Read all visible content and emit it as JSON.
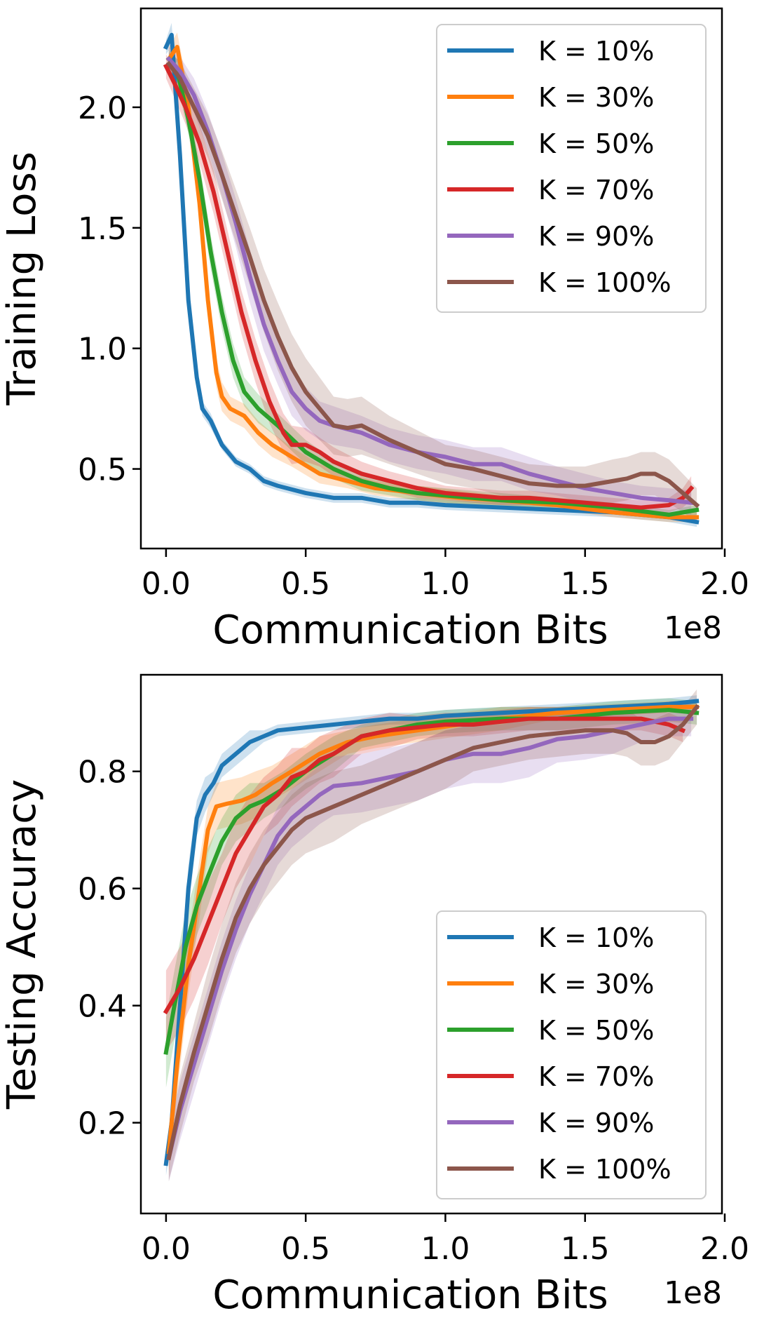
{
  "chart_data": [
    {
      "type": "line",
      "title": "",
      "xlabel": "Communication Bits",
      "ylabel": "Training Loss",
      "x_offset_label": "1e8",
      "xlim": [
        -0.09,
        1.99
      ],
      "ylim": [
        0.17,
        2.41
      ],
      "xticks": [
        0.0,
        0.5,
        1.0,
        1.5,
        2.0
      ],
      "xtick_labels": [
        "0.0",
        "0.5",
        "1.0",
        "1.5",
        "2.0"
      ],
      "yticks": [
        0.5,
        1.0,
        1.5,
        2.0
      ],
      "ytick_labels": [
        "0.5",
        "1.0",
        "1.5",
        "2.0"
      ],
      "grid": false,
      "legend_position": "top-right",
      "series": [
        {
          "name": "K = 10%",
          "color": "#1f77b4",
          "x": [
            0.0,
            0.02,
            0.05,
            0.08,
            0.11,
            0.13,
            0.16,
            0.2,
            0.25,
            0.3,
            0.35,
            0.4,
            0.5,
            0.6,
            0.7,
            0.8,
            0.9,
            1.0,
            1.2,
            1.4,
            1.6,
            1.8,
            1.9
          ],
          "y": [
            2.25,
            2.3,
            1.8,
            1.2,
            0.88,
            0.75,
            0.7,
            0.6,
            0.53,
            0.5,
            0.45,
            0.43,
            0.4,
            0.38,
            0.38,
            0.36,
            0.36,
            0.35,
            0.34,
            0.33,
            0.32,
            0.3,
            0.28
          ],
          "band": [
            0.03,
            0.05,
            0.05,
            0.05,
            0.04,
            0.03,
            0.03,
            0.02,
            0.02,
            0.02,
            0.02,
            0.02,
            0.02,
            0.02,
            0.02,
            0.02,
            0.02,
            0.02,
            0.02,
            0.02,
            0.02,
            0.02,
            0.02
          ]
        },
        {
          "name": "K = 30%",
          "color": "#ff7f0e",
          "x": [
            0.01,
            0.04,
            0.08,
            0.12,
            0.15,
            0.18,
            0.2,
            0.23,
            0.28,
            0.33,
            0.38,
            0.45,
            0.55,
            0.65,
            0.75,
            0.9,
            1.05,
            1.2,
            1.4,
            1.6,
            1.8,
            1.9
          ],
          "y": [
            2.2,
            2.25,
            2.0,
            1.6,
            1.2,
            0.9,
            0.8,
            0.75,
            0.72,
            0.65,
            0.6,
            0.55,
            0.48,
            0.45,
            0.42,
            0.4,
            0.38,
            0.37,
            0.35,
            0.32,
            0.3,
            0.3
          ],
          "band": [
            0.05,
            0.06,
            0.07,
            0.07,
            0.07,
            0.06,
            0.06,
            0.05,
            0.05,
            0.05,
            0.05,
            0.04,
            0.04,
            0.03,
            0.03,
            0.03,
            0.03,
            0.02,
            0.02,
            0.02,
            0.02,
            0.02
          ]
        },
        {
          "name": "K = 50%",
          "color": "#2ca02c",
          "x": [
            0.01,
            0.04,
            0.08,
            0.12,
            0.16,
            0.2,
            0.24,
            0.28,
            0.33,
            0.4,
            0.5,
            0.6,
            0.7,
            0.8,
            0.9,
            1.0,
            1.2,
            1.4,
            1.6,
            1.8,
            1.9
          ],
          "y": [
            2.2,
            2.15,
            1.95,
            1.7,
            1.4,
            1.15,
            0.95,
            0.82,
            0.75,
            0.68,
            0.57,
            0.5,
            0.45,
            0.42,
            0.4,
            0.39,
            0.37,
            0.36,
            0.34,
            0.31,
            0.33
          ],
          "band": [
            0.04,
            0.05,
            0.06,
            0.07,
            0.07,
            0.07,
            0.07,
            0.06,
            0.06,
            0.05,
            0.05,
            0.04,
            0.04,
            0.03,
            0.03,
            0.03,
            0.03,
            0.02,
            0.02,
            0.02,
            0.02
          ]
        },
        {
          "name": "K = 70%",
          "color": "#d62728",
          "x": [
            0.0,
            0.03,
            0.07,
            0.12,
            0.17,
            0.22,
            0.27,
            0.32,
            0.37,
            0.42,
            0.45,
            0.5,
            0.55,
            0.6,
            0.7,
            0.8,
            0.9,
            1.0,
            1.1,
            1.2,
            1.3,
            1.4,
            1.5,
            1.6,
            1.7,
            1.8,
            1.85,
            1.88
          ],
          "y": [
            2.17,
            2.1,
            2.0,
            1.85,
            1.65,
            1.4,
            1.15,
            0.95,
            0.78,
            0.65,
            0.6,
            0.6,
            0.57,
            0.53,
            0.48,
            0.45,
            0.42,
            0.4,
            0.39,
            0.38,
            0.38,
            0.37,
            0.36,
            0.35,
            0.34,
            0.35,
            0.38,
            0.42
          ],
          "band": [
            0.05,
            0.06,
            0.07,
            0.08,
            0.09,
            0.09,
            0.09,
            0.09,
            0.09,
            0.08,
            0.08,
            0.07,
            0.06,
            0.06,
            0.05,
            0.04,
            0.04,
            0.03,
            0.03,
            0.03,
            0.03,
            0.03,
            0.03,
            0.03,
            0.03,
            0.03,
            0.04,
            0.05
          ]
        },
        {
          "name": "K = 90%",
          "color": "#9467bd",
          "x": [
            0.01,
            0.05,
            0.1,
            0.15,
            0.2,
            0.25,
            0.3,
            0.35,
            0.4,
            0.45,
            0.5,
            0.55,
            0.6,
            0.7,
            0.8,
            0.9,
            1.0,
            1.1,
            1.2,
            1.3,
            1.4,
            1.5,
            1.6,
            1.7,
            1.8,
            1.88
          ],
          "y": [
            2.2,
            2.15,
            2.05,
            1.9,
            1.72,
            1.52,
            1.3,
            1.1,
            0.95,
            0.82,
            0.75,
            0.7,
            0.68,
            0.65,
            0.6,
            0.57,
            0.55,
            0.52,
            0.52,
            0.48,
            0.45,
            0.42,
            0.4,
            0.38,
            0.37,
            0.36
          ],
          "band": [
            0.05,
            0.06,
            0.07,
            0.08,
            0.09,
            0.1,
            0.11,
            0.11,
            0.1,
            0.1,
            0.09,
            0.08,
            0.08,
            0.07,
            0.07,
            0.07,
            0.07,
            0.07,
            0.07,
            0.07,
            0.06,
            0.06,
            0.05,
            0.05,
            0.05,
            0.05
          ]
        },
        {
          "name": "K = 100%",
          "color": "#8c564b",
          "x": [
            0.01,
            0.05,
            0.1,
            0.15,
            0.2,
            0.25,
            0.3,
            0.35,
            0.4,
            0.45,
            0.5,
            0.55,
            0.6,
            0.65,
            0.7,
            0.8,
            0.9,
            1.0,
            1.1,
            1.2,
            1.3,
            1.4,
            1.5,
            1.6,
            1.65,
            1.7,
            1.75,
            1.8,
            1.85,
            1.9
          ],
          "y": [
            2.18,
            2.12,
            2.0,
            1.88,
            1.72,
            1.55,
            1.38,
            1.2,
            1.05,
            0.92,
            0.82,
            0.75,
            0.68,
            0.67,
            0.68,
            0.62,
            0.57,
            0.52,
            0.5,
            0.47,
            0.44,
            0.43,
            0.43,
            0.45,
            0.46,
            0.48,
            0.48,
            0.45,
            0.4,
            0.35
          ],
          "band": [
            0.05,
            0.07,
            0.08,
            0.09,
            0.1,
            0.11,
            0.12,
            0.13,
            0.14,
            0.14,
            0.14,
            0.13,
            0.12,
            0.12,
            0.12,
            0.1,
            0.09,
            0.08,
            0.08,
            0.08,
            0.08,
            0.08,
            0.08,
            0.09,
            0.09,
            0.09,
            0.09,
            0.09,
            0.08,
            0.07
          ]
        }
      ]
    },
    {
      "type": "line",
      "title": "",
      "xlabel": "Communication Bits",
      "ylabel": "Testing Accuracy",
      "x_offset_label": "1e8",
      "xlim": [
        -0.09,
        1.99
      ],
      "ylim": [
        0.045,
        0.965
      ],
      "xticks": [
        0.0,
        0.5,
        1.0,
        1.5,
        2.0
      ],
      "xtick_labels": [
        "0.0",
        "0.5",
        "1.0",
        "1.5",
        "2.0"
      ],
      "yticks": [
        0.2,
        0.4,
        0.6,
        0.8
      ],
      "ytick_labels": [
        "0.2",
        "0.4",
        "0.6",
        "0.8"
      ],
      "grid": false,
      "legend_position": "lower-right",
      "series": [
        {
          "name": "K = 10%",
          "color": "#1f77b4",
          "x": [
            0.0,
            0.02,
            0.05,
            0.08,
            0.11,
            0.14,
            0.17,
            0.2,
            0.25,
            0.3,
            0.35,
            0.4,
            0.5,
            0.6,
            0.7,
            0.8,
            0.9,
            1.0,
            1.2,
            1.4,
            1.6,
            1.8,
            1.9
          ],
          "y": [
            0.13,
            0.2,
            0.4,
            0.6,
            0.72,
            0.76,
            0.78,
            0.81,
            0.83,
            0.85,
            0.86,
            0.87,
            0.875,
            0.88,
            0.885,
            0.89,
            0.89,
            0.895,
            0.9,
            0.905,
            0.91,
            0.915,
            0.92
          ],
          "band": [
            0.02,
            0.03,
            0.04,
            0.04,
            0.03,
            0.03,
            0.02,
            0.02,
            0.02,
            0.02,
            0.01,
            0.01,
            0.01,
            0.01,
            0.01,
            0.01,
            0.01,
            0.01,
            0.01,
            0.01,
            0.01,
            0.01,
            0.01
          ]
        },
        {
          "name": "K = 30%",
          "color": "#ff7f0e",
          "x": [
            0.01,
            0.04,
            0.08,
            0.12,
            0.15,
            0.18,
            0.22,
            0.27,
            0.32,
            0.38,
            0.45,
            0.55,
            0.65,
            0.75,
            0.9,
            1.05,
            1.2,
            1.4,
            1.6,
            1.8,
            1.9
          ],
          "y": [
            0.15,
            0.3,
            0.47,
            0.6,
            0.7,
            0.74,
            0.745,
            0.75,
            0.76,
            0.78,
            0.8,
            0.83,
            0.85,
            0.86,
            0.87,
            0.88,
            0.89,
            0.9,
            0.905,
            0.91,
            0.91
          ],
          "band": [
            0.04,
            0.05,
            0.05,
            0.05,
            0.04,
            0.04,
            0.04,
            0.04,
            0.04,
            0.03,
            0.03,
            0.03,
            0.02,
            0.02,
            0.02,
            0.02,
            0.02,
            0.01,
            0.01,
            0.01,
            0.01
          ]
        },
        {
          "name": "K = 50%",
          "color": "#2ca02c",
          "x": [
            0.0,
            0.03,
            0.07,
            0.11,
            0.15,
            0.2,
            0.25,
            0.3,
            0.35,
            0.42,
            0.5,
            0.6,
            0.7,
            0.8,
            0.9,
            1.0,
            1.2,
            1.4,
            1.6,
            1.8,
            1.9
          ],
          "y": [
            0.32,
            0.4,
            0.5,
            0.57,
            0.62,
            0.68,
            0.72,
            0.74,
            0.75,
            0.77,
            0.8,
            0.83,
            0.86,
            0.87,
            0.88,
            0.885,
            0.89,
            0.89,
            0.9,
            0.905,
            0.9
          ],
          "band": [
            0.06,
            0.06,
            0.06,
            0.05,
            0.05,
            0.04,
            0.04,
            0.04,
            0.03,
            0.03,
            0.03,
            0.03,
            0.02,
            0.02,
            0.02,
            0.02,
            0.02,
            0.02,
            0.02,
            0.02,
            0.02
          ]
        },
        {
          "name": "K = 70%",
          "color": "#d62728",
          "x": [
            0.0,
            0.05,
            0.1,
            0.15,
            0.2,
            0.25,
            0.3,
            0.35,
            0.4,
            0.45,
            0.5,
            0.55,
            0.6,
            0.7,
            0.8,
            0.9,
            1.0,
            1.1,
            1.2,
            1.3,
            1.4,
            1.5,
            1.6,
            1.7,
            1.8,
            1.85
          ],
          "y": [
            0.39,
            0.43,
            0.48,
            0.54,
            0.6,
            0.66,
            0.7,
            0.74,
            0.76,
            0.79,
            0.8,
            0.82,
            0.83,
            0.86,
            0.87,
            0.875,
            0.88,
            0.88,
            0.885,
            0.89,
            0.89,
            0.89,
            0.89,
            0.89,
            0.88,
            0.87
          ],
          "band": [
            0.07,
            0.07,
            0.07,
            0.07,
            0.06,
            0.06,
            0.06,
            0.05,
            0.05,
            0.05,
            0.04,
            0.04,
            0.04,
            0.03,
            0.03,
            0.02,
            0.02,
            0.02,
            0.02,
            0.02,
            0.02,
            0.02,
            0.02,
            0.02,
            0.02,
            0.02
          ]
        },
        {
          "name": "K = 90%",
          "color": "#9467bd",
          "x": [
            0.01,
            0.05,
            0.1,
            0.15,
            0.2,
            0.25,
            0.3,
            0.35,
            0.4,
            0.45,
            0.5,
            0.55,
            0.6,
            0.7,
            0.8,
            0.9,
            1.0,
            1.1,
            1.2,
            1.3,
            1.4,
            1.5,
            1.6,
            1.7,
            1.8,
            1.88
          ],
          "y": [
            0.14,
            0.22,
            0.3,
            0.38,
            0.46,
            0.53,
            0.59,
            0.64,
            0.69,
            0.72,
            0.74,
            0.76,
            0.775,
            0.78,
            0.79,
            0.8,
            0.82,
            0.83,
            0.83,
            0.84,
            0.855,
            0.86,
            0.87,
            0.88,
            0.89,
            0.89
          ],
          "band": [
            0.04,
            0.05,
            0.05,
            0.05,
            0.05,
            0.05,
            0.05,
            0.05,
            0.05,
            0.05,
            0.05,
            0.05,
            0.05,
            0.05,
            0.05,
            0.05,
            0.05,
            0.05,
            0.05,
            0.05,
            0.04,
            0.04,
            0.04,
            0.03,
            0.03,
            0.03
          ]
        },
        {
          "name": "K = 100%",
          "color": "#8c564b",
          "x": [
            0.01,
            0.05,
            0.1,
            0.15,
            0.2,
            0.25,
            0.3,
            0.35,
            0.4,
            0.45,
            0.5,
            0.55,
            0.6,
            0.7,
            0.8,
            0.9,
            1.0,
            1.1,
            1.2,
            1.3,
            1.4,
            1.5,
            1.6,
            1.65,
            1.7,
            1.75,
            1.8,
            1.85,
            1.9
          ],
          "y": [
            0.14,
            0.23,
            0.32,
            0.4,
            0.48,
            0.55,
            0.6,
            0.64,
            0.67,
            0.7,
            0.72,
            0.73,
            0.74,
            0.76,
            0.78,
            0.8,
            0.82,
            0.84,
            0.85,
            0.86,
            0.865,
            0.87,
            0.87,
            0.865,
            0.85,
            0.85,
            0.86,
            0.88,
            0.91
          ],
          "band": [
            0.04,
            0.05,
            0.05,
            0.06,
            0.06,
            0.06,
            0.06,
            0.06,
            0.06,
            0.06,
            0.06,
            0.06,
            0.06,
            0.05,
            0.05,
            0.05,
            0.05,
            0.04,
            0.04,
            0.04,
            0.04,
            0.04,
            0.04,
            0.04,
            0.04,
            0.04,
            0.04,
            0.03,
            0.03
          ]
        }
      ]
    }
  ]
}
